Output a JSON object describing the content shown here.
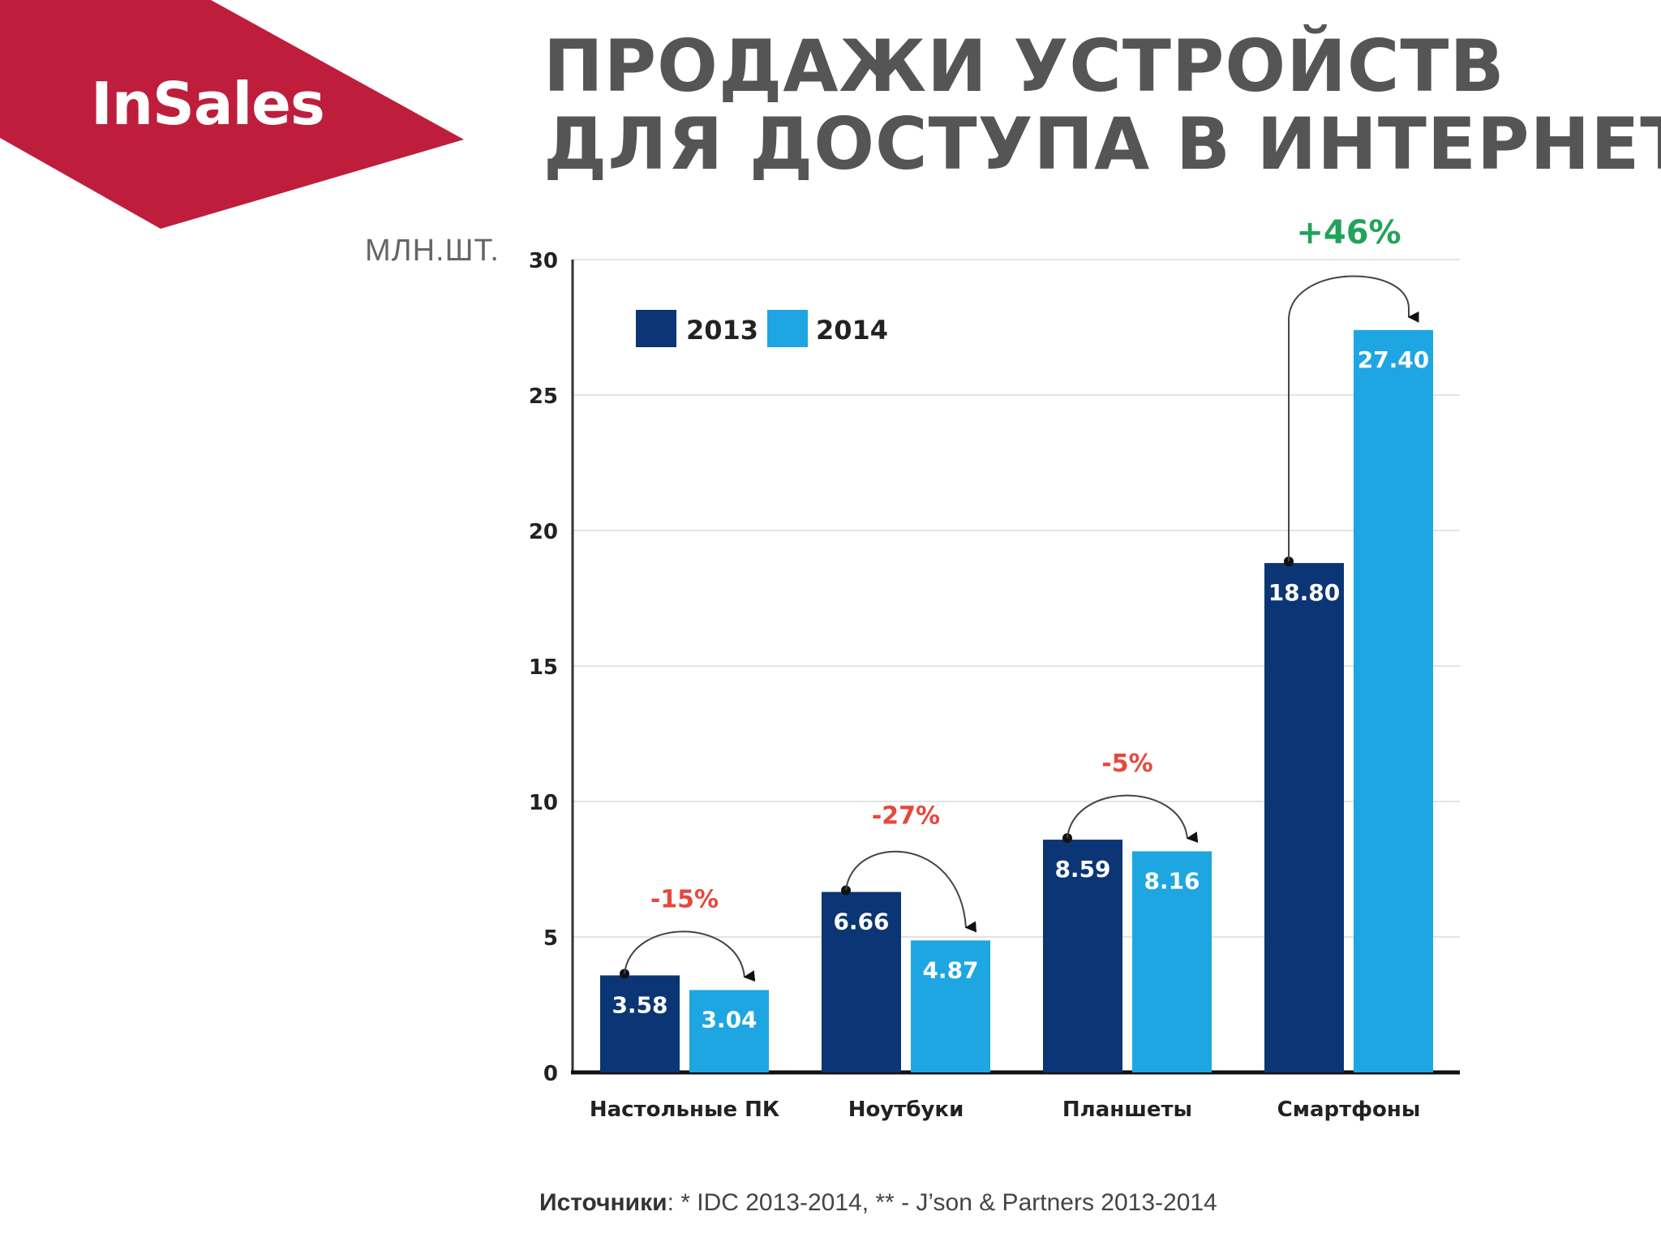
{
  "brand": {
    "name": "InSales",
    "color": "#be1e3c"
  },
  "title": {
    "line1": "ПРОДАЖИ УСТРОЙСТВ",
    "line2": "ДЛЯ ДОСТУПА В ИНТЕРНЕТ"
  },
  "unit_label": "МЛН.ШТ.",
  "source": {
    "label": "Источники",
    "text": ": * IDC 2013-2014, ** - J’son & Partners 2013-2014"
  },
  "colors": {
    "series_2013": "#0b3574",
    "series_2014": "#1ea6e2",
    "negative": "#e8473c",
    "positive": "#22a35a"
  },
  "chart_data": {
    "type": "bar",
    "ylabel": "МЛН.ШТ.",
    "ylim": [
      0,
      30
    ],
    "yticks": [
      0,
      5,
      10,
      15,
      20,
      25,
      30
    ],
    "grid": true,
    "legend_position": "top-left",
    "categories": [
      "Настольные ПК",
      "Ноутбуки",
      "Планшеты",
      "Смартфоны"
    ],
    "series": [
      {
        "name": "2013",
        "values": [
          3.58,
          6.66,
          8.59,
          18.8
        ],
        "labels": [
          "3.58",
          "6.66",
          "8.59",
          "18.80"
        ]
      },
      {
        "name": "2014",
        "values": [
          3.04,
          4.87,
          8.16,
          27.4
        ],
        "labels": [
          "3.04",
          "4.87",
          "8.16",
          "27.40"
        ]
      }
    ],
    "changes": [
      "-15%",
      "-27%",
      "-5%",
      "+46%"
    ]
  }
}
